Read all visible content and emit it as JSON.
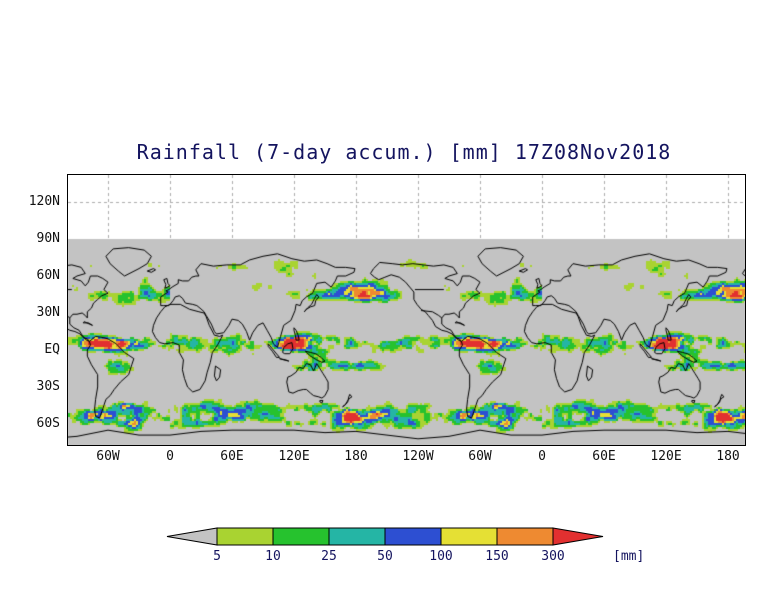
{
  "title": "Rainfall (7-day accum.) [mm] 17Z08Nov2018",
  "chart_data": {
    "type": "heatmap",
    "subtype": "global-rainfall-map",
    "title": "Rainfall (7-day accum.) [mm] 17Z08Nov2018",
    "units": "mm",
    "y_ticks": [
      "120N",
      "90N",
      "60N",
      "30N",
      "EQ",
      "30S",
      "60S"
    ],
    "x_ticks": [
      "60W",
      "0",
      "60E",
      "120E",
      "180",
      "120W",
      "60W",
      "0",
      "60E",
      "120E",
      "180"
    ],
    "colorbar": {
      "thresholds": [
        5,
        10,
        25,
        50,
        100,
        150,
        300
      ],
      "labels": [
        "5",
        "10",
        "25",
        "50",
        "100",
        "150",
        "300"
      ],
      "unit_label": "[mm]",
      "colors": [
        "#c3c3c3",
        "#a9d331",
        "#26c22e",
        "#25b5a5",
        "#2d4fd2",
        "#e5e034",
        "#ee8a31",
        "#e23030"
      ]
    },
    "map": {
      "background": "#c3c3c3",
      "no_data_above": "90N"
    }
  },
  "colors": {
    "title_text": "#14145f",
    "axis_text": "#111111",
    "grid": "#adadad",
    "coastline": "#000000"
  }
}
